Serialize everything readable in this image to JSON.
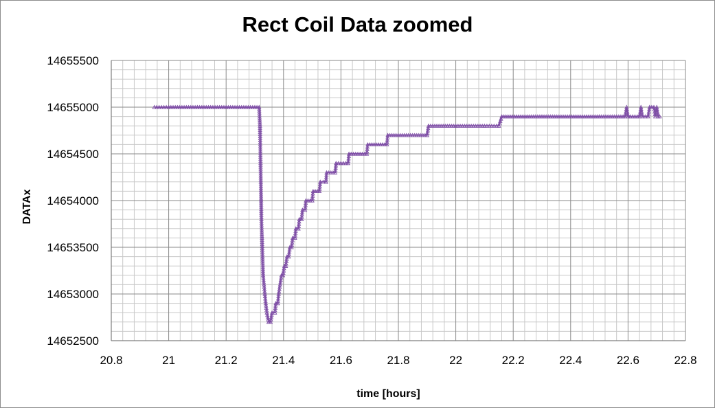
{
  "chart_data": {
    "type": "line",
    "title": "Rect Coil Data zoomed",
    "xlabel": "time [hours]",
    "ylabel": "DATAx",
    "xlim": [
      20.8,
      22.8
    ],
    "ylim": [
      14652500,
      14655500
    ],
    "x_ticks": [
      "20.8",
      "21",
      "21.2",
      "21.4",
      "21.6",
      "21.8",
      "22",
      "22.2",
      "22.4",
      "22.6",
      "22.8"
    ],
    "y_ticks": [
      "14652500",
      "14653000",
      "14653500",
      "14654000",
      "14654500",
      "14655000",
      "14655500"
    ],
    "grid": true,
    "minor_grid": true,
    "marker": "triangle",
    "series_color": "#7f4fa6",
    "series": [
      {
        "values": [
          [
            20.95,
            14655000
          ],
          [
            21.0,
            14655000
          ],
          [
            21.1,
            14655000
          ],
          [
            21.2,
            14655000
          ],
          [
            21.3,
            14655000
          ],
          [
            21.315,
            14655000
          ],
          [
            21.318,
            14654800
          ],
          [
            21.319,
            14654600
          ],
          [
            21.32,
            14654400
          ],
          [
            21.321,
            14654200
          ],
          [
            21.322,
            14654000
          ],
          [
            21.323,
            14653800
          ],
          [
            21.325,
            14653600
          ],
          [
            21.327,
            14653400
          ],
          [
            21.329,
            14653200
          ],
          [
            21.332,
            14653100
          ],
          [
            21.335,
            14653000
          ],
          [
            21.338,
            14652900
          ],
          [
            21.342,
            14652800
          ],
          [
            21.348,
            14652700
          ],
          [
            21.355,
            14652700
          ],
          [
            21.36,
            14652800
          ],
          [
            21.37,
            14652800
          ],
          [
            21.373,
            14652900
          ],
          [
            21.38,
            14652900
          ],
          [
            21.383,
            14653000
          ],
          [
            21.388,
            14653100
          ],
          [
            21.393,
            14653200
          ],
          [
            21.398,
            14653200
          ],
          [
            21.403,
            14653300
          ],
          [
            21.408,
            14653300
          ],
          [
            21.412,
            14653400
          ],
          [
            21.418,
            14653400
          ],
          [
            21.422,
            14653500
          ],
          [
            21.428,
            14653500
          ],
          [
            21.432,
            14653600
          ],
          [
            21.44,
            14653600
          ],
          [
            21.443,
            14653700
          ],
          [
            21.452,
            14653700
          ],
          [
            21.455,
            14653800
          ],
          [
            21.463,
            14653800
          ],
          [
            21.466,
            14653900
          ],
          [
            21.475,
            14653900
          ],
          [
            21.478,
            14654000
          ],
          [
            21.5,
            14654000
          ],
          [
            21.503,
            14654100
          ],
          [
            21.525,
            14654100
          ],
          [
            21.528,
            14654200
          ],
          [
            21.548,
            14654200
          ],
          [
            21.55,
            14654300
          ],
          [
            21.58,
            14654300
          ],
          [
            21.583,
            14654400
          ],
          [
            21.625,
            14654400
          ],
          [
            21.628,
            14654500
          ],
          [
            21.69,
            14654500
          ],
          [
            21.693,
            14654600
          ],
          [
            21.76,
            14654600
          ],
          [
            21.763,
            14654700
          ],
          [
            21.9,
            14654700
          ],
          [
            21.905,
            14654800
          ],
          [
            22.0,
            14654800
          ],
          [
            22.1,
            14654800
          ],
          [
            22.15,
            14654800
          ],
          [
            22.16,
            14654900
          ],
          [
            22.3,
            14654900
          ],
          [
            22.5,
            14654900
          ],
          [
            22.59,
            14654900
          ],
          [
            22.595,
            14655000
          ],
          [
            22.6,
            14654900
          ],
          [
            22.64,
            14654900
          ],
          [
            22.645,
            14655000
          ],
          [
            22.65,
            14654900
          ],
          [
            22.67,
            14654900
          ],
          [
            22.675,
            14655000
          ],
          [
            22.69,
            14655000
          ],
          [
            22.695,
            14654900
          ],
          [
            22.7,
            14655000
          ],
          [
            22.705,
            14654900
          ],
          [
            22.71,
            14654900
          ]
        ]
      }
    ]
  }
}
